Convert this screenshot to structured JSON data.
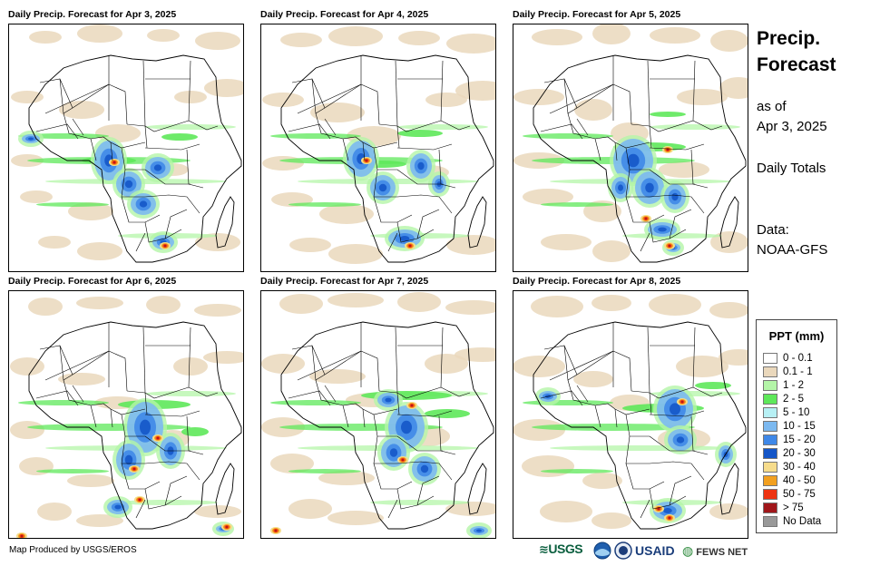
{
  "panels": [
    {
      "title": "Daily Precip. Forecast for Apr 3, 2025"
    },
    {
      "title": "Daily Precip. Forecast for Apr 4, 2025"
    },
    {
      "title": "Daily Precip. Forecast for Apr 5, 2025"
    },
    {
      "title": "Daily Precip. Forecast for Apr 6, 2025"
    },
    {
      "title": "Daily Precip. Forecast for Apr 7, 2025"
    },
    {
      "title": "Daily Precip. Forecast for Apr 8, 2025"
    }
  ],
  "side": {
    "title_line1": "Precip.",
    "title_line2": "Forecast",
    "asof_line1": "as of",
    "asof_line2": "Apr 3, 2025",
    "totals": "Daily Totals",
    "data_line1": "Data:",
    "data_line2": "NOAA-GFS"
  },
  "legend": {
    "title": "PPT (mm)",
    "items": [
      {
        "label": "0 - 0.1",
        "color": "#ffffff"
      },
      {
        "label": "0.1 - 1",
        "color": "#ead8bc"
      },
      {
        "label": "1 - 2",
        "color": "#b4f5a8"
      },
      {
        "label": "2 - 5",
        "color": "#5ee85a"
      },
      {
        "label": "5 - 10",
        "color": "#b7f0f4"
      },
      {
        "label": "10 - 15",
        "color": "#7cb9f0"
      },
      {
        "label": "15 - 20",
        "color": "#3f88e8"
      },
      {
        "label": "20 - 30",
        "color": "#1456c8"
      },
      {
        "label": "30 - 40",
        "color": "#f6dc8c"
      },
      {
        "label": "40 - 50",
        "color": "#f2a020"
      },
      {
        "label": "50 - 75",
        "color": "#ee3412"
      },
      {
        "label": "> 75",
        "color": "#a0161a"
      },
      {
        "label": "No Data",
        "color": "#999999"
      }
    ]
  },
  "footer": {
    "credit": "Map Produced by USGS/EROS",
    "logos": {
      "usgs": "USGS",
      "usaid": "USAID",
      "fews": "FEWS NET"
    }
  }
}
